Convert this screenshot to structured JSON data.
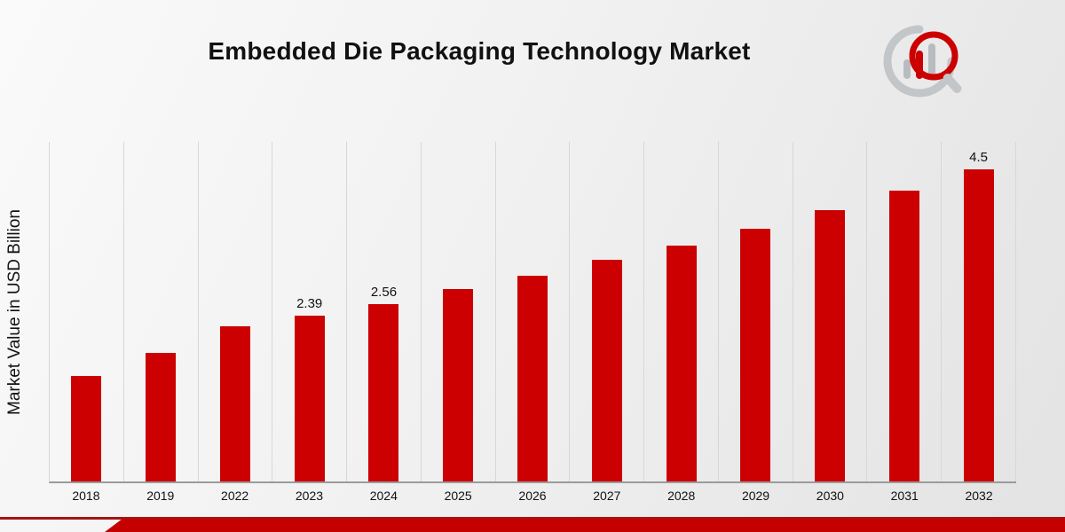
{
  "chart_data": {
    "type": "bar",
    "title": "Embedded Die Packaging Technology Market",
    "ylabel": "Market Value in USD Billion",
    "xlabel": "",
    "categories": [
      "2018",
      "2019",
      "2022",
      "2023",
      "2024",
      "2025",
      "2026",
      "2027",
      "2028",
      "2029",
      "2030",
      "2031",
      "2032"
    ],
    "values": [
      1.52,
      1.85,
      2.24,
      2.39,
      2.56,
      2.78,
      2.97,
      3.2,
      3.4,
      3.65,
      3.92,
      4.2,
      4.5
    ],
    "bar_labels": [
      "",
      "",
      "",
      "2.39",
      "2.56",
      "",
      "",
      "",
      "",
      "",
      "",
      "",
      "4.5"
    ],
    "ylim": [
      0,
      4.9
    ],
    "bar_color": "#cc0000",
    "grid": "vertical",
    "legend": "none"
  },
  "logo": {
    "name": "market-research-logo",
    "accent_color": "#cc0000",
    "gray_color": "#b9bcbf"
  },
  "footer": {
    "line_color": "#a31515",
    "ribbon_color": "#c40000"
  }
}
